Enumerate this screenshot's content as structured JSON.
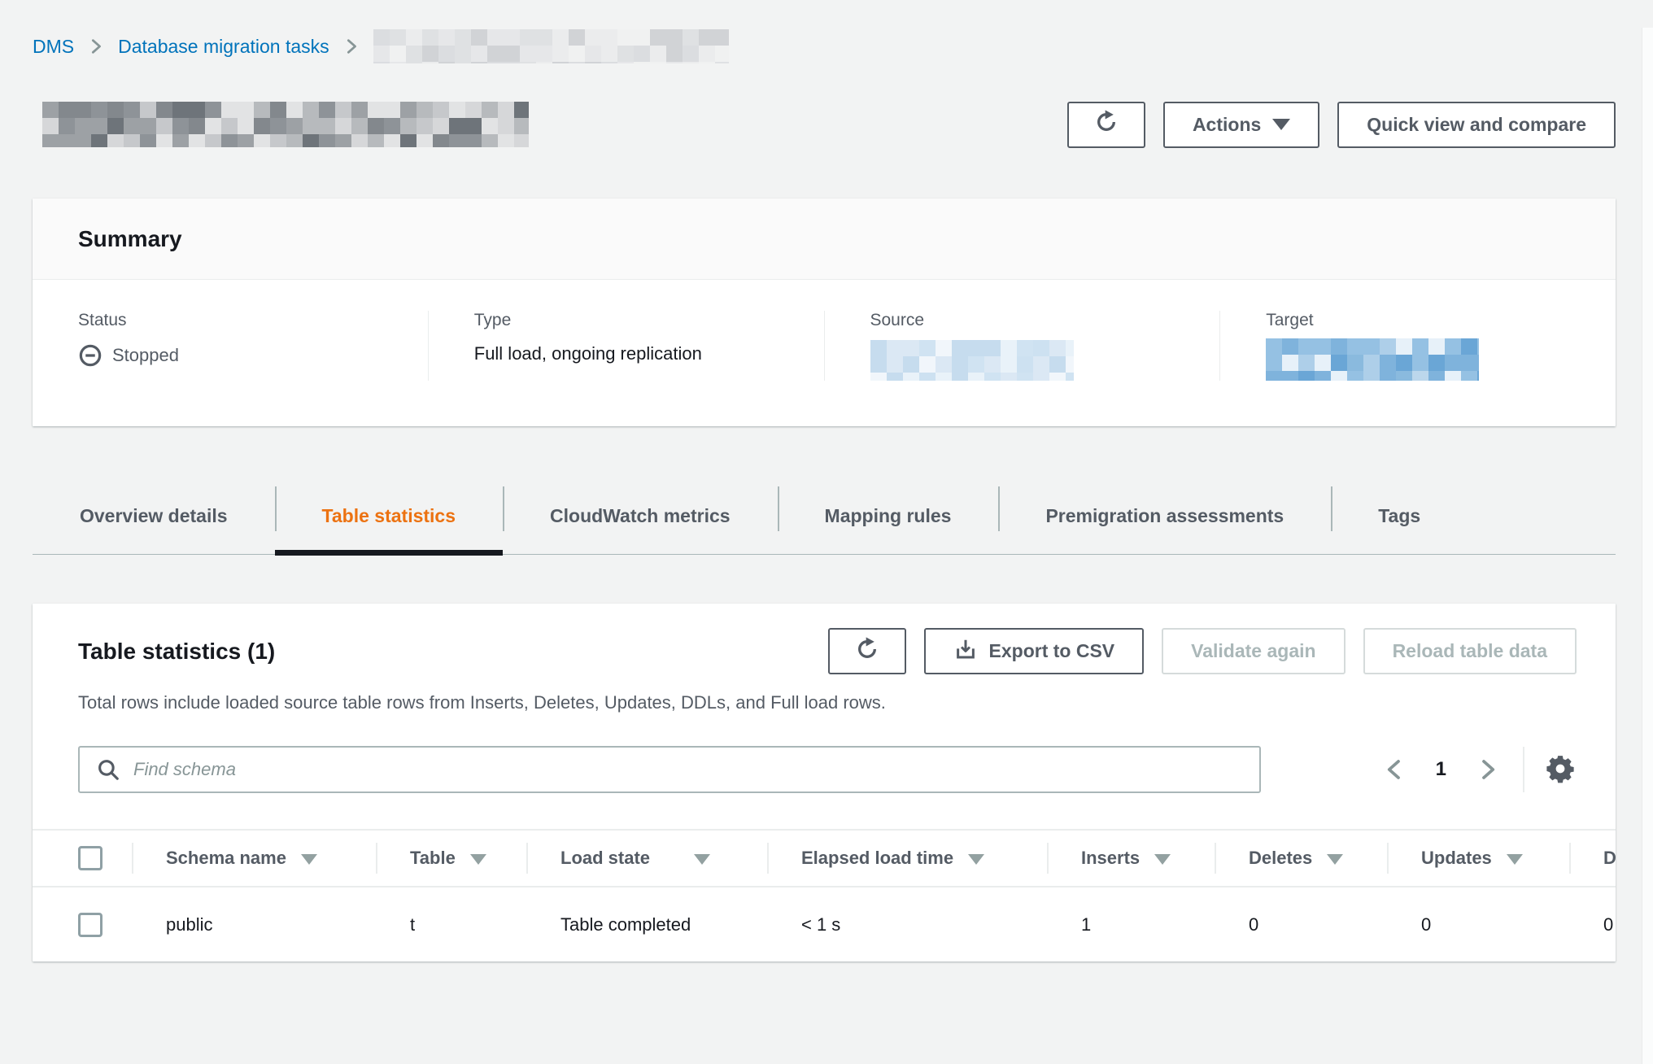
{
  "theme": {
    "page_bg": "#f2f3f3",
    "card_bg": "#ffffff",
    "link_blue": "#0073bb",
    "accent_orange": "#ec7211",
    "text_dark": "#16191f",
    "text_secondary": "#545b64",
    "border_light": "#eaeded",
    "border_mid": "#aab7b8",
    "disabled_text": "#aab7b8",
    "muted_icon": "#879596"
  },
  "breadcrumb": {
    "items": [
      {
        "label": "DMS"
      },
      {
        "label": "Database migration tasks"
      }
    ]
  },
  "header": {
    "refresh_icon": "refresh-icon",
    "actions_label": "Actions",
    "quick_view_label": "Quick view and compare"
  },
  "summary": {
    "title": "Summary",
    "fields": [
      {
        "label": "Status",
        "value": "Stopped",
        "icon": "minus-circle-icon"
      },
      {
        "label": "Type",
        "value": "Full load, ongoing replication"
      },
      {
        "label": "Source",
        "value": ""
      },
      {
        "label": "Target",
        "value": ""
      }
    ]
  },
  "tabs": {
    "items": [
      {
        "label": "Overview details",
        "active": false
      },
      {
        "label": "Table statistics",
        "active": true
      },
      {
        "label": "CloudWatch metrics",
        "active": false
      },
      {
        "label": "Mapping rules",
        "active": false
      },
      {
        "label": "Premigration assessments",
        "active": false
      },
      {
        "label": "Tags",
        "active": false
      }
    ]
  },
  "table_section": {
    "title": "Table statistics (1)",
    "description": "Total rows include loaded source table rows from Inserts, Deletes, Updates, DDLs, and Full load rows.",
    "refresh_icon": "refresh-icon",
    "export_label": "Export to CSV",
    "export_icon": "download-icon",
    "validate_label": "Validate again",
    "reload_label": "Reload table data",
    "search_placeholder": "Find schema",
    "pagination": {
      "prev_icon": "chevron-left-icon",
      "current_page": "1",
      "next_icon": "chevron-right-icon",
      "settings_icon": "gear-icon"
    },
    "table": {
      "columns": [
        "Schema name",
        "Table",
        "Load state",
        "Elapsed load time",
        "Inserts",
        "Deletes",
        "Updates",
        "D"
      ],
      "rows": [
        {
          "schema": "public",
          "table": "t",
          "load_state": "Table completed",
          "elapsed": "< 1 s",
          "inserts": "1",
          "deletes": "0",
          "updates": "0",
          "ddls": "0"
        }
      ]
    }
  }
}
